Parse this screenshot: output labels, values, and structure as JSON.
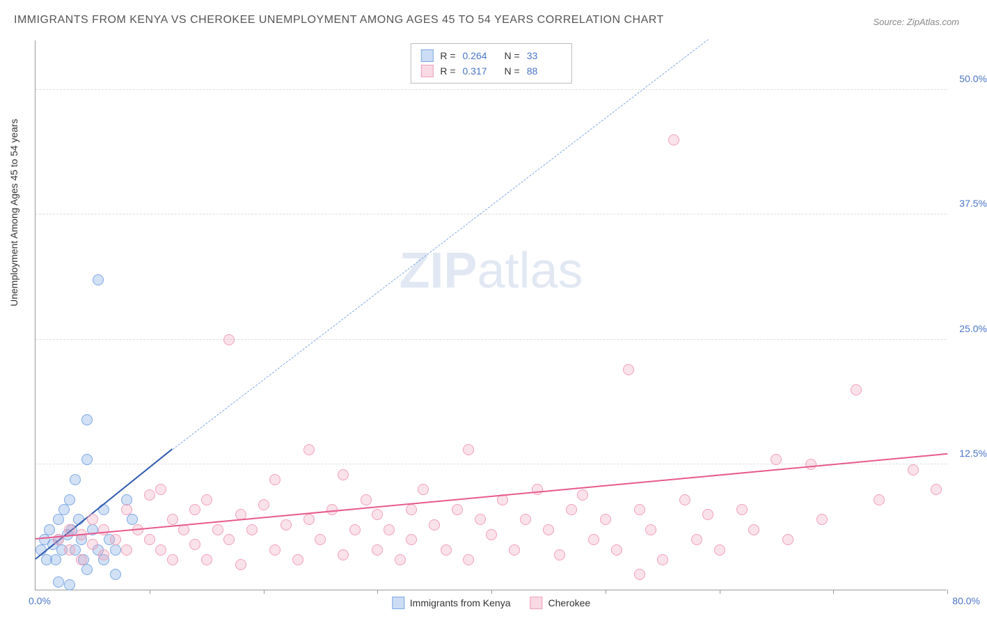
{
  "title": "IMMIGRANTS FROM KENYA VS CHEROKEE UNEMPLOYMENT AMONG AGES 45 TO 54 YEARS CORRELATION CHART",
  "source": "Source: ZipAtlas.com",
  "ylabel": "Unemployment Among Ages 45 to 54 years",
  "watermark_a": "ZIP",
  "watermark_b": "atlas",
  "chart": {
    "type": "scatter",
    "background_color": "#ffffff",
    "grid_color": "#dddddd",
    "axis_color": "#999999",
    "text_color": "#333333",
    "value_color": "#4a74c9",
    "xlim": [
      0,
      80
    ],
    "ylim": [
      0,
      55
    ],
    "yticks": [
      {
        "v": 12.5,
        "label": "12.5%"
      },
      {
        "v": 25.0,
        "label": "25.0%"
      },
      {
        "v": 37.5,
        "label": "37.5%"
      },
      {
        "v": 50.0,
        "label": "50.0%"
      }
    ],
    "xticks": [
      10,
      20,
      30,
      40,
      50,
      60,
      70,
      80
    ],
    "x_origin_label": "0.0%",
    "x_max_label": "80.0%",
    "marker_radius": 8,
    "series": [
      {
        "key": "kenya",
        "name": "Immigrants from Kenya",
        "color_fill": "rgba(125,168,227,0.35)",
        "color_stroke": "#7da8e3",
        "R": "0.264",
        "N": "33",
        "trend_solid": {
          "x1": 0,
          "y1": 3.0,
          "x2": 12,
          "y2": 14.0,
          "color": "#2e5aac",
          "width": 2.5
        },
        "trend_dashed": {
          "x1": 12,
          "y1": 14.0,
          "x2": 59,
          "y2": 55.0,
          "color": "#7da8e3",
          "width": 1.5
        },
        "points": [
          {
            "x": 0.5,
            "y": 4
          },
          {
            "x": 0.8,
            "y": 5
          },
          {
            "x": 1.0,
            "y": 3
          },
          {
            "x": 1.2,
            "y": 6
          },
          {
            "x": 1.5,
            "y": 4.5
          },
          {
            "x": 1.8,
            "y": 3
          },
          {
            "x": 2.0,
            "y": 7
          },
          {
            "x": 2.0,
            "y": 5
          },
          {
            "x": 2.3,
            "y": 4
          },
          {
            "x": 2.5,
            "y": 8
          },
          {
            "x": 2.8,
            "y": 5.5
          },
          {
            "x": 3.0,
            "y": 9
          },
          {
            "x": 3.2,
            "y": 6
          },
          {
            "x": 3.5,
            "y": 4
          },
          {
            "x": 3.5,
            "y": 11
          },
          {
            "x": 3.8,
            "y": 7
          },
          {
            "x": 4.0,
            "y": 5
          },
          {
            "x": 4.2,
            "y": 3
          },
          {
            "x": 4.5,
            "y": 2
          },
          {
            "x": 4.5,
            "y": 13
          },
          {
            "x": 4.5,
            "y": 17
          },
          {
            "x": 5.0,
            "y": 6
          },
          {
            "x": 5.5,
            "y": 4
          },
          {
            "x": 5.5,
            "y": 31
          },
          {
            "x": 6.0,
            "y": 3
          },
          {
            "x": 6.0,
            "y": 8
          },
          {
            "x": 6.5,
            "y": 5
          },
          {
            "x": 7.0,
            "y": 4
          },
          {
            "x": 7.0,
            "y": 1.5
          },
          {
            "x": 8.0,
            "y": 9
          },
          {
            "x": 8.5,
            "y": 7
          },
          {
            "x": 2.0,
            "y": 0.8
          },
          {
            "x": 3.0,
            "y": 0.5
          }
        ]
      },
      {
        "key": "cherokee",
        "name": "Cherokee",
        "color_fill": "rgba(240,160,185,0.30)",
        "color_stroke": "#f0a0b9",
        "R": "0.317",
        "N": "88",
        "trend_solid": {
          "x1": 0,
          "y1": 5.0,
          "x2": 80,
          "y2": 13.5,
          "color": "#e75a8d",
          "width": 2.5
        },
        "points": [
          {
            "x": 2,
            "y": 5
          },
          {
            "x": 3,
            "y": 4
          },
          {
            "x": 3,
            "y": 6
          },
          {
            "x": 4,
            "y": 5.5
          },
          {
            "x": 4,
            "y": 3
          },
          {
            "x": 5,
            "y": 7
          },
          {
            "x": 5,
            "y": 4.5
          },
          {
            "x": 6,
            "y": 6
          },
          {
            "x": 6,
            "y": 3.5
          },
          {
            "x": 7,
            "y": 5
          },
          {
            "x": 8,
            "y": 8
          },
          {
            "x": 8,
            "y": 4
          },
          {
            "x": 9,
            "y": 6
          },
          {
            "x": 10,
            "y": 9.5
          },
          {
            "x": 10,
            "y": 5
          },
          {
            "x": 11,
            "y": 4
          },
          {
            "x": 11,
            "y": 10
          },
          {
            "x": 12,
            "y": 7
          },
          {
            "x": 12,
            "y": 3
          },
          {
            "x": 13,
            "y": 6
          },
          {
            "x": 14,
            "y": 8
          },
          {
            "x": 14,
            "y": 4.5
          },
          {
            "x": 15,
            "y": 9
          },
          {
            "x": 15,
            "y": 3
          },
          {
            "x": 16,
            "y": 6
          },
          {
            "x": 17,
            "y": 25
          },
          {
            "x": 17,
            "y": 5
          },
          {
            "x": 18,
            "y": 7.5
          },
          {
            "x": 18,
            "y": 2.5
          },
          {
            "x": 19,
            "y": 6
          },
          {
            "x": 20,
            "y": 8.5
          },
          {
            "x": 21,
            "y": 4
          },
          {
            "x": 21,
            "y": 11
          },
          {
            "x": 22,
            "y": 6.5
          },
          {
            "x": 23,
            "y": 3
          },
          {
            "x": 24,
            "y": 14
          },
          {
            "x": 24,
            "y": 7
          },
          {
            "x": 25,
            "y": 5
          },
          {
            "x": 26,
            "y": 8
          },
          {
            "x": 27,
            "y": 3.5
          },
          {
            "x": 27,
            "y": 11.5
          },
          {
            "x": 28,
            "y": 6
          },
          {
            "x": 29,
            "y": 9
          },
          {
            "x": 30,
            "y": 4
          },
          {
            "x": 30,
            "y": 7.5
          },
          {
            "x": 31,
            "y": 6
          },
          {
            "x": 32,
            "y": 3
          },
          {
            "x": 33,
            "y": 8
          },
          {
            "x": 33,
            "y": 5
          },
          {
            "x": 34,
            "y": 10
          },
          {
            "x": 35,
            "y": 6.5
          },
          {
            "x": 36,
            "y": 4
          },
          {
            "x": 37,
            "y": 8
          },
          {
            "x": 38,
            "y": 3
          },
          {
            "x": 38,
            "y": 14
          },
          {
            "x": 39,
            "y": 7
          },
          {
            "x": 40,
            "y": 5.5
          },
          {
            "x": 41,
            "y": 9
          },
          {
            "x": 42,
            "y": 4
          },
          {
            "x": 43,
            "y": 7
          },
          {
            "x": 44,
            "y": 10
          },
          {
            "x": 45,
            "y": 6
          },
          {
            "x": 46,
            "y": 3.5
          },
          {
            "x": 47,
            "y": 8
          },
          {
            "x": 48,
            "y": 9.5
          },
          {
            "x": 49,
            "y": 5
          },
          {
            "x": 50,
            "y": 7
          },
          {
            "x": 51,
            "y": 4
          },
          {
            "x": 52,
            "y": 22
          },
          {
            "x": 53,
            "y": 8
          },
          {
            "x": 54,
            "y": 6
          },
          {
            "x": 55,
            "y": 3
          },
          {
            "x": 56,
            "y": 45
          },
          {
            "x": 57,
            "y": 9
          },
          {
            "x": 58,
            "y": 5
          },
          {
            "x": 59,
            "y": 7.5
          },
          {
            "x": 60,
            "y": 4
          },
          {
            "x": 62,
            "y": 8
          },
          {
            "x": 63,
            "y": 6
          },
          {
            "x": 65,
            "y": 13
          },
          {
            "x": 66,
            "y": 5
          },
          {
            "x": 68,
            "y": 12.5
          },
          {
            "x": 69,
            "y": 7
          },
          {
            "x": 72,
            "y": 20
          },
          {
            "x": 74,
            "y": 9
          },
          {
            "x": 77,
            "y": 12
          },
          {
            "x": 79,
            "y": 10
          },
          {
            "x": 53,
            "y": 1.5
          }
        ]
      }
    ],
    "legend_rows": [
      {
        "swatch": "blue",
        "R": "0.264",
        "N": "33"
      },
      {
        "swatch": "pink",
        "R": "0.317",
        "N": "88"
      }
    ]
  }
}
